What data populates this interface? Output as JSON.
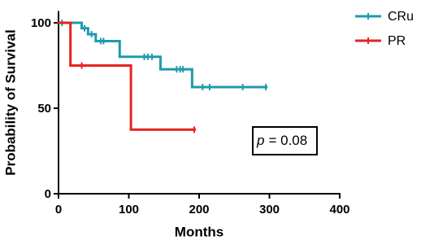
{
  "chart_data": {
    "type": "survival",
    "xlabel": "Months",
    "ylabel": "Probability of Survival",
    "xlim": [
      0,
      400
    ],
    "xticks": [
      0,
      100,
      200,
      300,
      400
    ],
    "ylim": [
      0,
      105
    ],
    "yticks": [
      0,
      50,
      100
    ],
    "legend": "top-right",
    "annotation": [
      "p",
      "= 0.08"
    ],
    "series": [
      {
        "name": "CRu",
        "color": "#1f9aad",
        "x": [
          0,
          33,
          42,
          53,
          87,
          145,
          190,
          295
        ],
        "values": [
          100,
          96.8,
          93.3,
          89.3,
          80.1,
          72.8,
          62.4,
          62.4
        ],
        "censor_x": [
          5,
          37,
          47,
          60,
          64,
          122,
          127,
          133,
          168,
          173,
          177,
          205,
          215,
          262,
          295
        ],
        "censor_y": [
          100,
          96.8,
          93.3,
          89.3,
          89.3,
          80.1,
          80.1,
          80.1,
          72.8,
          72.8,
          72.8,
          62.4,
          62.4,
          62.4,
          62.4
        ]
      },
      {
        "name": "PR",
        "color": "#e5231f",
        "x": [
          0,
          17,
          103,
          193
        ],
        "values": [
          100,
          75,
          37.5,
          37.5
        ],
        "censor_x": [
          33,
          193
        ],
        "censor_y": [
          75,
          37.5
        ]
      }
    ]
  }
}
